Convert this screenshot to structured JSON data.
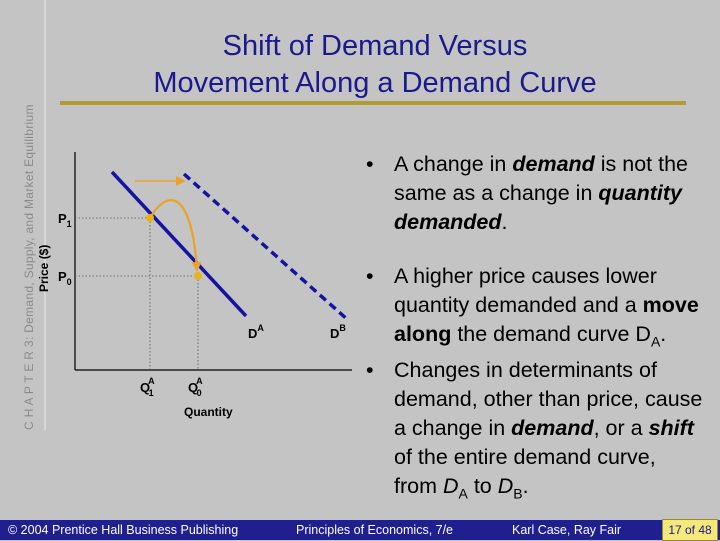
{
  "sidebar": {
    "chapter_text": "C H A P T E R 3: Demand, Supply, and Market Equilibrium"
  },
  "title": {
    "line1": "Shift of Demand Versus",
    "line2": "Movement Along a Demand Curve"
  },
  "graph": {
    "y_axis_label": "Price ($)",
    "x_axis_label": "Quantity",
    "p1": {
      "base": "P",
      "sub": "1"
    },
    "p0": {
      "base": "P",
      "sub": "0"
    },
    "qa1": {
      "base": "Q",
      "sup": "A",
      "sub": "1"
    },
    "qa0": {
      "base": "Q",
      "sup": "A",
      "sub": "0"
    },
    "da": {
      "base": "D",
      "sup": "A"
    },
    "db": {
      "base": "D",
      "sup": "B"
    },
    "colors": {
      "demand_line": "#1414a0",
      "point": "#e8b21a",
      "arrow": "#e8a32a"
    }
  },
  "bullets": {
    "b1": {
      "a": "A change in ",
      "b": "demand",
      "c": " is not the same as a change in ",
      "d": "quantity demanded",
      "e": "."
    },
    "b2": {
      "a": "A higher price causes lower quantity demanded and a ",
      "b": "move along",
      "c": " the demand curve D",
      "sub": "A",
      "d": "."
    },
    "b3": {
      "a": "Changes in determinants of demand, other than price, cause a change in ",
      "b": "demand",
      "c": ", or a ",
      "d": "shift",
      "e": " of the entire demand curve, from ",
      "f": "D",
      "fsub": "A",
      "g": " to ",
      "h": "D",
      "hsub": "B",
      "i": "."
    },
    "marker": "•"
  },
  "footer": {
    "copyright": "© 2004 Prentice Hall Business Publishing",
    "book": "Principles of Economics, 7/e",
    "authors": "Karl Case, Ray Fair",
    "page": "17 of 48"
  }
}
